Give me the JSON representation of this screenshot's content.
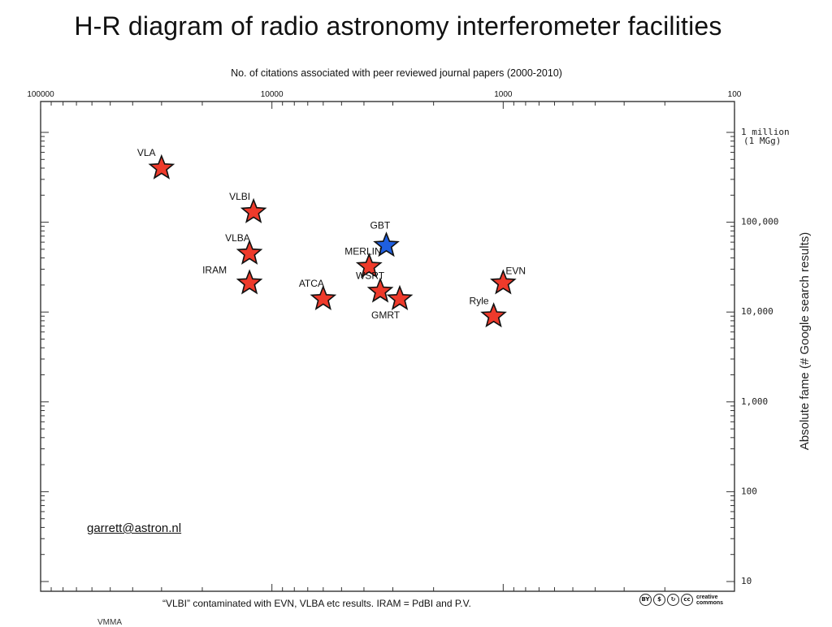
{
  "slide": {
    "title": "H-R diagram of radio astronomy interferometer facilities",
    "email": "garrett@astron.nl",
    "footnote": "“VLBI” contaminated with EVN, VLBA etc results. IRAM = PdBI and P.V.",
    "cc_text_1": "creative",
    "cc_text_2": "commons",
    "cut_label": "VMMA"
  },
  "chart_data": {
    "type": "scatter",
    "title": "",
    "xlabel": "No. of citations associated with peer reviewed journal papers (2000-2010)",
    "ylabel": "Absolute fame (# Google search results)",
    "x_scale": "log",
    "y_scale": "log",
    "x_reversed": true,
    "xlim": [
      100000,
      100
    ],
    "ylim": [
      10,
      2000000
    ],
    "x_ticks": [
      {
        "value": 100000,
        "label": "100000"
      },
      {
        "value": 10000,
        "label": "10000"
      },
      {
        "value": 1000,
        "label": "1000"
      },
      {
        "value": 100,
        "label": "100"
      }
    ],
    "y_ticks": [
      {
        "value": 1000000,
        "label": "1 million"
      },
      {
        "value": 100000,
        "label": "100,000"
      },
      {
        "value": 10000,
        "label": "10,000"
      },
      {
        "value": 1000,
        "label": "1,000"
      },
      {
        "value": 100,
        "label": "100"
      },
      {
        "value": 10,
        "label": "10"
      }
    ],
    "y_tick_sublabel": "(1 MGg)",
    "grid": false,
    "colors": {
      "default": "#ee3a2b",
      "highlight": "#1f5fe0"
    },
    "points": [
      {
        "name": "VLA",
        "citations": 30000,
        "fame": 400000,
        "color": "#ee3a2b",
        "label_pos": "upper-left"
      },
      {
        "name": "VLBI",
        "citations": 12000,
        "fame": 130000,
        "color": "#ee3a2b",
        "label_pos": "upper-left"
      },
      {
        "name": "VLBA",
        "citations": 12500,
        "fame": 45000,
        "color": "#ee3a2b",
        "label_pos": "upper-left"
      },
      {
        "name": "IRAM",
        "citations": 12500,
        "fame": 21000,
        "color": "#ee3a2b",
        "label_pos": "left"
      },
      {
        "name": "ATCA",
        "citations": 6000,
        "fame": 14000,
        "color": "#ee3a2b",
        "label_pos": "upper-left"
      },
      {
        "name": "GBT",
        "citations": 3200,
        "fame": 55000,
        "color": "#1f5fe0",
        "label_pos": "above"
      },
      {
        "name": "MERLIN",
        "citations": 3800,
        "fame": 32000,
        "color": "#ee3a2b",
        "label_pos": "upper-left"
      },
      {
        "name": "WSRT",
        "citations": 3400,
        "fame": 17000,
        "color": "#ee3a2b",
        "label_pos": "upper-left"
      },
      {
        "name": "GMRT",
        "citations": 2800,
        "fame": 14000,
        "color": "#ee3a2b",
        "label_pos": "below"
      },
      {
        "name": "EVN",
        "citations": 1000,
        "fame": 21000,
        "color": "#ee3a2b",
        "label_pos": "upper-right"
      },
      {
        "name": "Ryle",
        "citations": 1100,
        "fame": 9000,
        "color": "#ee3a2b",
        "label_pos": "upper-left"
      }
    ]
  }
}
